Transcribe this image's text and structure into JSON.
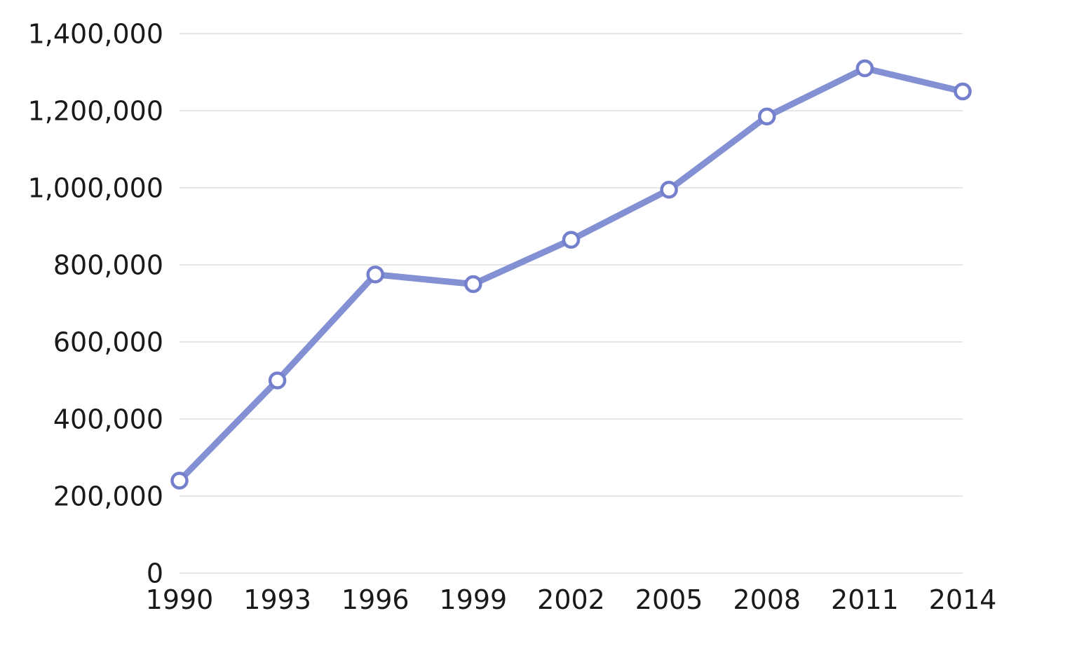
{
  "chart_data": {
    "type": "line",
    "title": "",
    "xlabel": "",
    "ylabel": "",
    "categories": [
      "1990",
      "1993",
      "1996",
      "1999",
      "2002",
      "2005",
      "2008",
      "2011",
      "2014"
    ],
    "series": [
      {
        "name": "value",
        "values": [
          240000,
          500000,
          775000,
          750000,
          865000,
          995000,
          1185000,
          1310000,
          1250000
        ]
      }
    ],
    "ylim": [
      0,
      1400000
    ],
    "yticks": [
      0,
      200000,
      400000,
      600000,
      800000,
      1000000,
      1200000,
      1400000
    ],
    "ytick_label_format": "comma-grouped",
    "grid": true,
    "legend_position": "none",
    "marker": "open-circle",
    "colors": {
      "line": "#8490d4",
      "marker_stroke": "#7480cc",
      "marker_fill": "#ffffff",
      "gridline": "#e2e2e2",
      "text": "#1a1a1a",
      "background": "#ffffff"
    }
  }
}
